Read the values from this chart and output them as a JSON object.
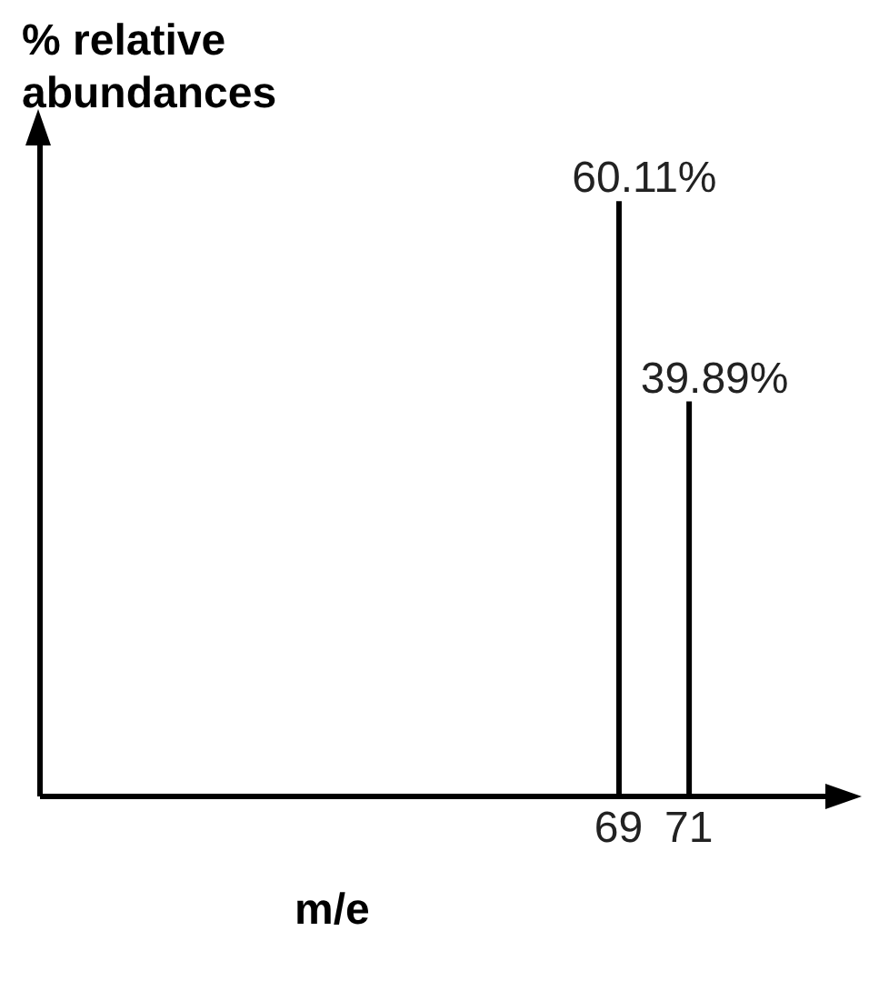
{
  "chart_data": {
    "type": "bar",
    "ylabel": "% relative abundances",
    "xlabel": "m/e",
    "x": [
      69,
      71
    ],
    "values": [
      60.11,
      39.89
    ],
    "value_labels": [
      "60.11%",
      "39.89%"
    ],
    "color": "#000000",
    "xlim": [
      52.5,
      75
    ],
    "xticks": [
      69,
      71
    ],
    "grid": false,
    "legend": false
  }
}
